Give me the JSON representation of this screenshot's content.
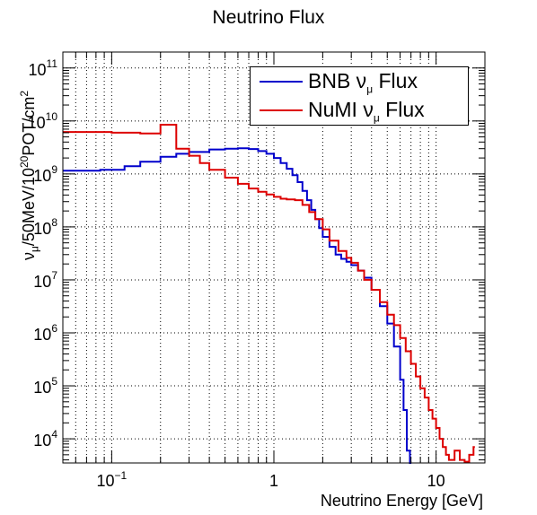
{
  "chart_data": {
    "type": "line",
    "title": "Neutrino Flux",
    "xlabel": "Neutrino Energy [GeV]",
    "ylabel": {
      "prefix": "ν",
      "prefix_sub": "μ",
      "mid": "/50MeV/10",
      "mid_sup": "20",
      "tail": "POT/cm",
      "tail_sup": "2"
    },
    "x_scale": "log",
    "y_scale": "log",
    "xlim": [
      0.05,
      20
    ],
    "ylim": [
      3500,
      200000000000.0
    ],
    "grid": true,
    "legend_position": "top-right",
    "x_ticks": [
      {
        "value": 0.1,
        "base": "10",
        "exp": "−1"
      },
      {
        "value": 1,
        "base": "1",
        "exp": ""
      },
      {
        "value": 10,
        "base": "10",
        "exp": ""
      }
    ],
    "y_ticks": [
      {
        "value": 10000.0,
        "base": "10",
        "exp": "4"
      },
      {
        "value": 100000.0,
        "base": "10",
        "exp": "5"
      },
      {
        "value": 1000000.0,
        "base": "10",
        "exp": "6"
      },
      {
        "value": 10000000.0,
        "base": "10",
        "exp": "7"
      },
      {
        "value": 100000000.0,
        "base": "10",
        "exp": "8"
      },
      {
        "value": 1000000000.0,
        "base": "10",
        "exp": "9"
      },
      {
        "value": 10000000000.0,
        "base": "10",
        "exp": "10"
      },
      {
        "value": 100000000000.0,
        "base": "10",
        "exp": "11"
      }
    ],
    "series": [
      {
        "name": "BNB",
        "legend_label": "BNB  ν",
        "legend_sub": "μ",
        "legend_tail": " Flux",
        "color": "#0000cc",
        "x": [
          0.05,
          0.072,
          0.085,
          0.12,
          0.15,
          0.2,
          0.25,
          0.3,
          0.4,
          0.5,
          0.6,
          0.7,
          0.8,
          0.9,
          1.0,
          1.1,
          1.2,
          1.3,
          1.4,
          1.5,
          1.6,
          1.7,
          1.8,
          1.9,
          2.0,
          2.2,
          2.4,
          2.6,
          2.8,
          3.0,
          3.3,
          3.6,
          4.0,
          4.5,
          5.0,
          5.5,
          6.0,
          6.3,
          6.6,
          6.9
        ],
        "y": [
          1150000000.0,
          1150000000.0,
          1200000000.0,
          1400000000.0,
          1700000000.0,
          2100000000.0,
          2400000000.0,
          2600000000.0,
          2900000000.0,
          3000000000.0,
          3050000000.0,
          2950000000.0,
          2700000000.0,
          2400000000.0,
          2000000000.0,
          1600000000.0,
          1250000000.0,
          950000000.0,
          700000000.0,
          480000000.0,
          320000000.0,
          210000000.0,
          140000000.0,
          95000000.0,
          65000000.0,
          42000000.0,
          30000000.0,
          25000000.0,
          22000000.0,
          19000000.0,
          15000000.0,
          11000000.0,
          6500000.0,
          3200000.0,
          1500000.0,
          550000.0,
          130000.0,
          35000.0,
          6000,
          3500
        ]
      },
      {
        "name": "NuMI",
        "legend_label": "NuMI ν",
        "legend_sub": "μ",
        "legend_tail": " Flux",
        "color": "#dd0000",
        "x": [
          0.05,
          0.1,
          0.15,
          0.2,
          0.25,
          0.3,
          0.35,
          0.4,
          0.5,
          0.6,
          0.7,
          0.8,
          0.9,
          1.0,
          1.1,
          1.2,
          1.35,
          1.5,
          1.65,
          1.8,
          2.0,
          2.2,
          2.5,
          2.8,
          3.0,
          3.3,
          3.6,
          4.0,
          4.5,
          5.0,
          5.5,
          6.0,
          6.5,
          7.0,
          7.5,
          8.0,
          8.5,
          9.0,
          9.5,
          10.0,
          10.5,
          11.0,
          11.5,
          12.0,
          13.0,
          14.0,
          15.0,
          16.0,
          17.0
        ],
        "y": [
          6200000000.0,
          6000000000.0,
          5800000000.0,
          8500000000.0,
          3000000000.0,
          2200000000.0,
          1600000000.0,
          1200000000.0,
          850000000.0,
          650000000.0,
          530000000.0,
          460000000.0,
          410000000.0,
          370000000.0,
          340000000.0,
          330000000.0,
          320000000.0,
          260000000.0,
          190000000.0,
          140000000.0,
          90000000.0,
          55000000.0,
          35000000.0,
          26000000.0,
          21000000.0,
          15000000.0,
          10000000.0,
          6500000.0,
          3800000.0,
          2200000.0,
          1400000.0,
          800000.0,
          450000.0,
          260000.0,
          150000.0,
          90000.0,
          60000.0,
          35000.0,
          24000.0,
          16000.0,
          10000.0,
          7000,
          5000,
          4000,
          6000,
          4000,
          3700,
          5000,
          7000
        ]
      }
    ]
  }
}
